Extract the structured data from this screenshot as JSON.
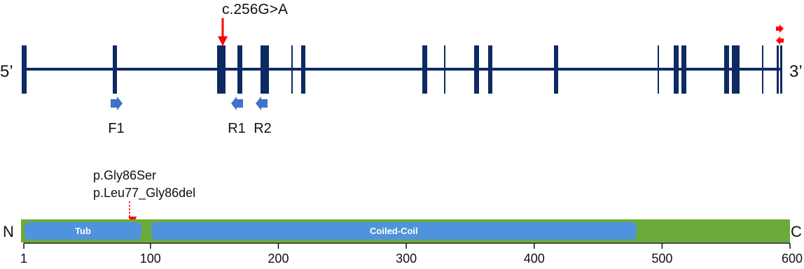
{
  "gene": {
    "left_label": "5’",
    "right_label": "3’",
    "mutation_label": "c.256G>A",
    "primers": [
      {
        "name": "F1",
        "direction": "right"
      },
      {
        "name": "R1",
        "direction": "left"
      },
      {
        "name": "R2",
        "direction": "left"
      }
    ]
  },
  "protein": {
    "n_label": "N",
    "c_label": "C",
    "variant_labels": [
      "p.Gly86Ser",
      "p.Leu77_Gly86del"
    ],
    "domains": [
      {
        "name": "Tub",
        "start": 1,
        "end": 93
      },
      {
        "name": "Coiled-Coil",
        "start": 100,
        "end": 480
      }
    ],
    "axis": {
      "min": 1,
      "max": 600,
      "ticks": [
        "1",
        "100",
        "200",
        "300",
        "400",
        "500",
        "600"
      ]
    },
    "variant_position": 86
  },
  "colors": {
    "gene_line": "#0d2a63",
    "mutation_arrow": "#ff0000",
    "primer": "#3f72c8",
    "protein_bar": "#6aab3a",
    "domain": "#4f93dc"
  }
}
